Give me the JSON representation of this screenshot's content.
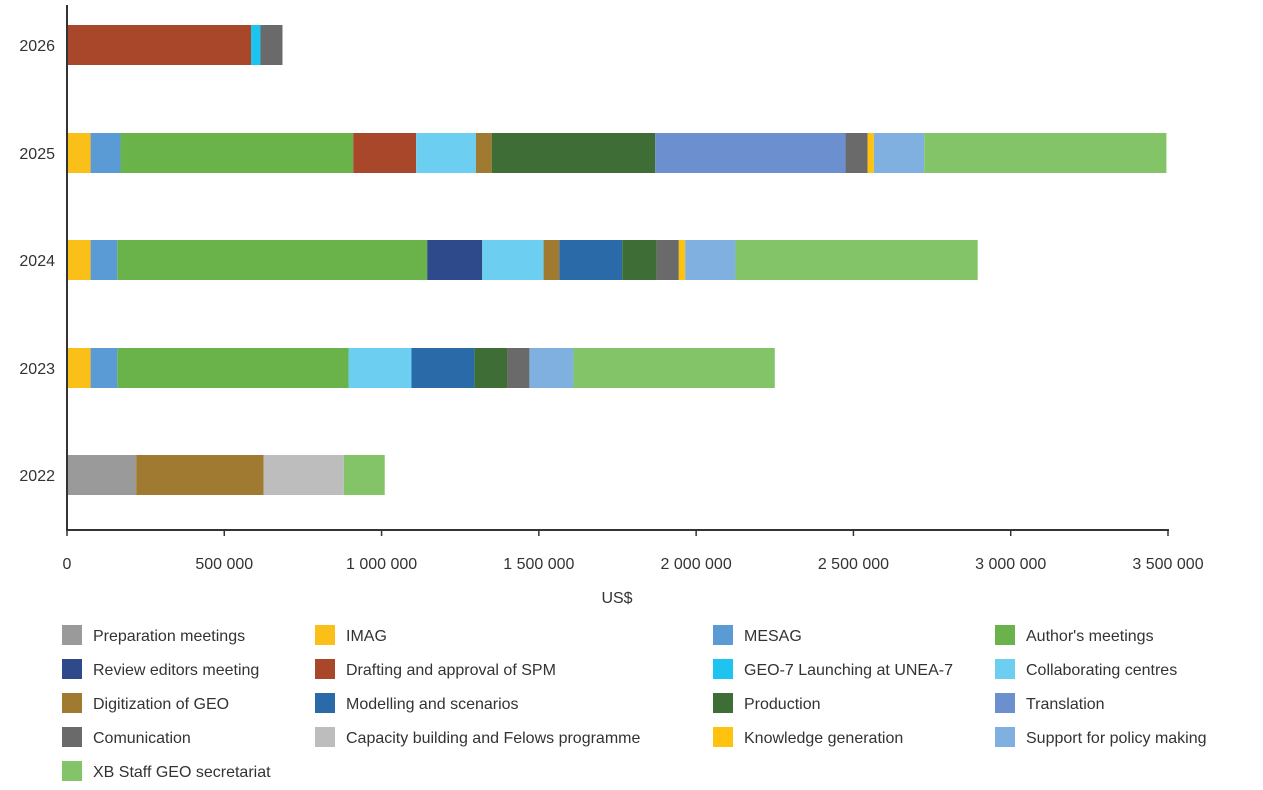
{
  "chart_data": {
    "type": "bar",
    "orientation": "horizontal",
    "stacked": true,
    "title": "",
    "xlabel": "US$",
    "ylabel": "",
    "xlim": [
      0,
      3500000
    ],
    "x_ticks": [
      0,
      500000,
      1000000,
      1500000,
      2000000,
      2500000,
      3000000,
      3500000
    ],
    "x_tick_labels": [
      "0",
      "500 000",
      "1 000 000",
      "1 500 000",
      "2 000 000",
      "2 500 000",
      "3 000 000",
      "3 500 000"
    ],
    "grid": false,
    "legend_position": "bottom",
    "categories": [
      "2026",
      "2025",
      "2024",
      "2023",
      "2022"
    ],
    "series": [
      {
        "name": "Preparation meetings",
        "color": "#9a9a9a",
        "values": [
          0,
          0,
          0,
          0,
          220000
        ]
      },
      {
        "name": "IMAG",
        "color": "#fbbf1a",
        "values": [
          0,
          75000,
          75000,
          75000,
          0
        ]
      },
      {
        "name": "MESAG",
        "color": "#5b9bd5",
        "values": [
          0,
          95000,
          85000,
          85000,
          0
        ]
      },
      {
        "name": "Author's meetings",
        "color": "#6ab24a",
        "values": [
          0,
          740000,
          985000,
          735000,
          0
        ]
      },
      {
        "name": "Review editors meeting",
        "color": "#2e4a8a",
        "values": [
          0,
          0,
          175000,
          0,
          0
        ]
      },
      {
        "name": "Drafting and approval of SPM",
        "color": "#a8472a",
        "values": [
          585000,
          200000,
          0,
          0,
          0
        ]
      },
      {
        "name": "GEO-7 Launching at UNEA-7",
        "color": "#1ec4f0",
        "values": [
          30000,
          0,
          0,
          0,
          0
        ]
      },
      {
        "name": "Collaborating centres",
        "color": "#6ccff2",
        "values": [
          0,
          190000,
          195000,
          200000,
          0
        ]
      },
      {
        "name": "Digitization of GEO",
        "color": "#a07a30",
        "values": [
          0,
          50000,
          50000,
          0,
          405000
        ]
      },
      {
        "name": "Modelling and scenarios",
        "color": "#2a6aa8",
        "values": [
          0,
          0,
          200000,
          200000,
          0
        ]
      },
      {
        "name": "Production",
        "color": "#3e6e35",
        "values": [
          0,
          520000,
          110000,
          105000,
          0
        ]
      },
      {
        "name": "Translation",
        "color": "#6c8fcf",
        "values": [
          0,
          605000,
          0,
          0,
          0
        ]
      },
      {
        "name": "Comunication",
        "color": "#6a6a6a",
        "values": [
          70000,
          70000,
          70000,
          70000,
          0
        ]
      },
      {
        "name": "Capacity building and Felows programme",
        "color": "#bdbdbd",
        "values": [
          0,
          0,
          0,
          0,
          255000
        ]
      },
      {
        "name": "Knowledge generation",
        "color": "#ffc20e",
        "values": [
          0,
          20000,
          20000,
          0,
          0
        ]
      },
      {
        "name": "Support for policy making",
        "color": "#7fb0e0",
        "values": [
          0,
          160000,
          160000,
          140000,
          0
        ]
      },
      {
        "name": "XB Staff GEO secretariat",
        "color": "#82c467",
        "values": [
          0,
          770000,
          770000,
          640000,
          130000
        ]
      }
    ]
  }
}
